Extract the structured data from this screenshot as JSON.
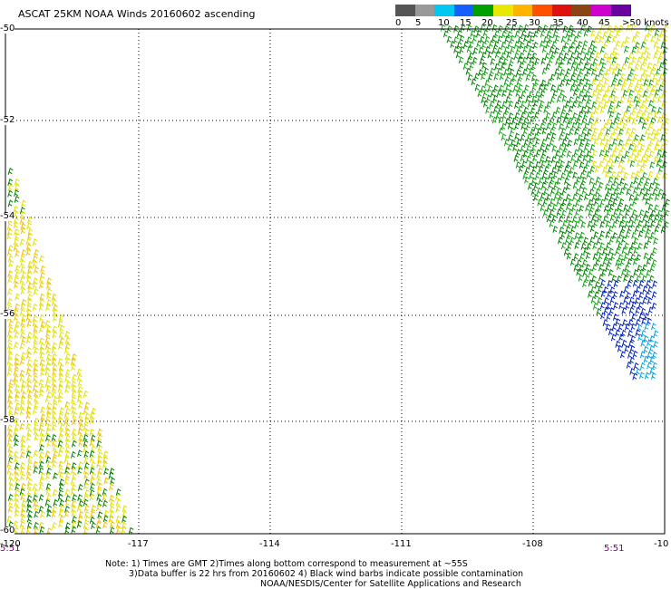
{
  "title": "ASCAT 25KM NOAA Winds 20160602 ascending",
  "legend": {
    "colors": [
      "#555555",
      "#999999",
      "#00c8f0",
      "#1460ff",
      "#00a000",
      "#e8e800",
      "#ffb400",
      "#ff5000",
      "#e01010",
      "#8b4513",
      "#d000d0",
      "#6a00a0"
    ],
    "labels": [
      "0",
      "5",
      "10",
      "15",
      "20",
      "25",
      "30",
      "35",
      "40",
      "45",
      ">50 knots"
    ]
  },
  "axes": {
    "lat_labels": [
      "-50",
      "-52",
      "-54",
      "-56",
      "-58",
      "-60"
    ],
    "lon_labels": [
      "-120",
      "-117",
      "-114",
      "-111",
      "-108",
      "-10"
    ]
  },
  "times": {
    "left": "5:51",
    "right": "5:51"
  },
  "notes": {
    "line1": "Note: 1) Times are GMT 2)Times along bottom correspond to measurement at ~55S",
    "line2": "3)Data buffer is 22 hrs from 20160602 4) Black wind barbs indicate possible contamination",
    "line3": "NOAA/NESDIS/Center for Satellite Applications and Research"
  },
  "colors": {
    "grid": "#000000",
    "time_text": "#800080"
  }
}
